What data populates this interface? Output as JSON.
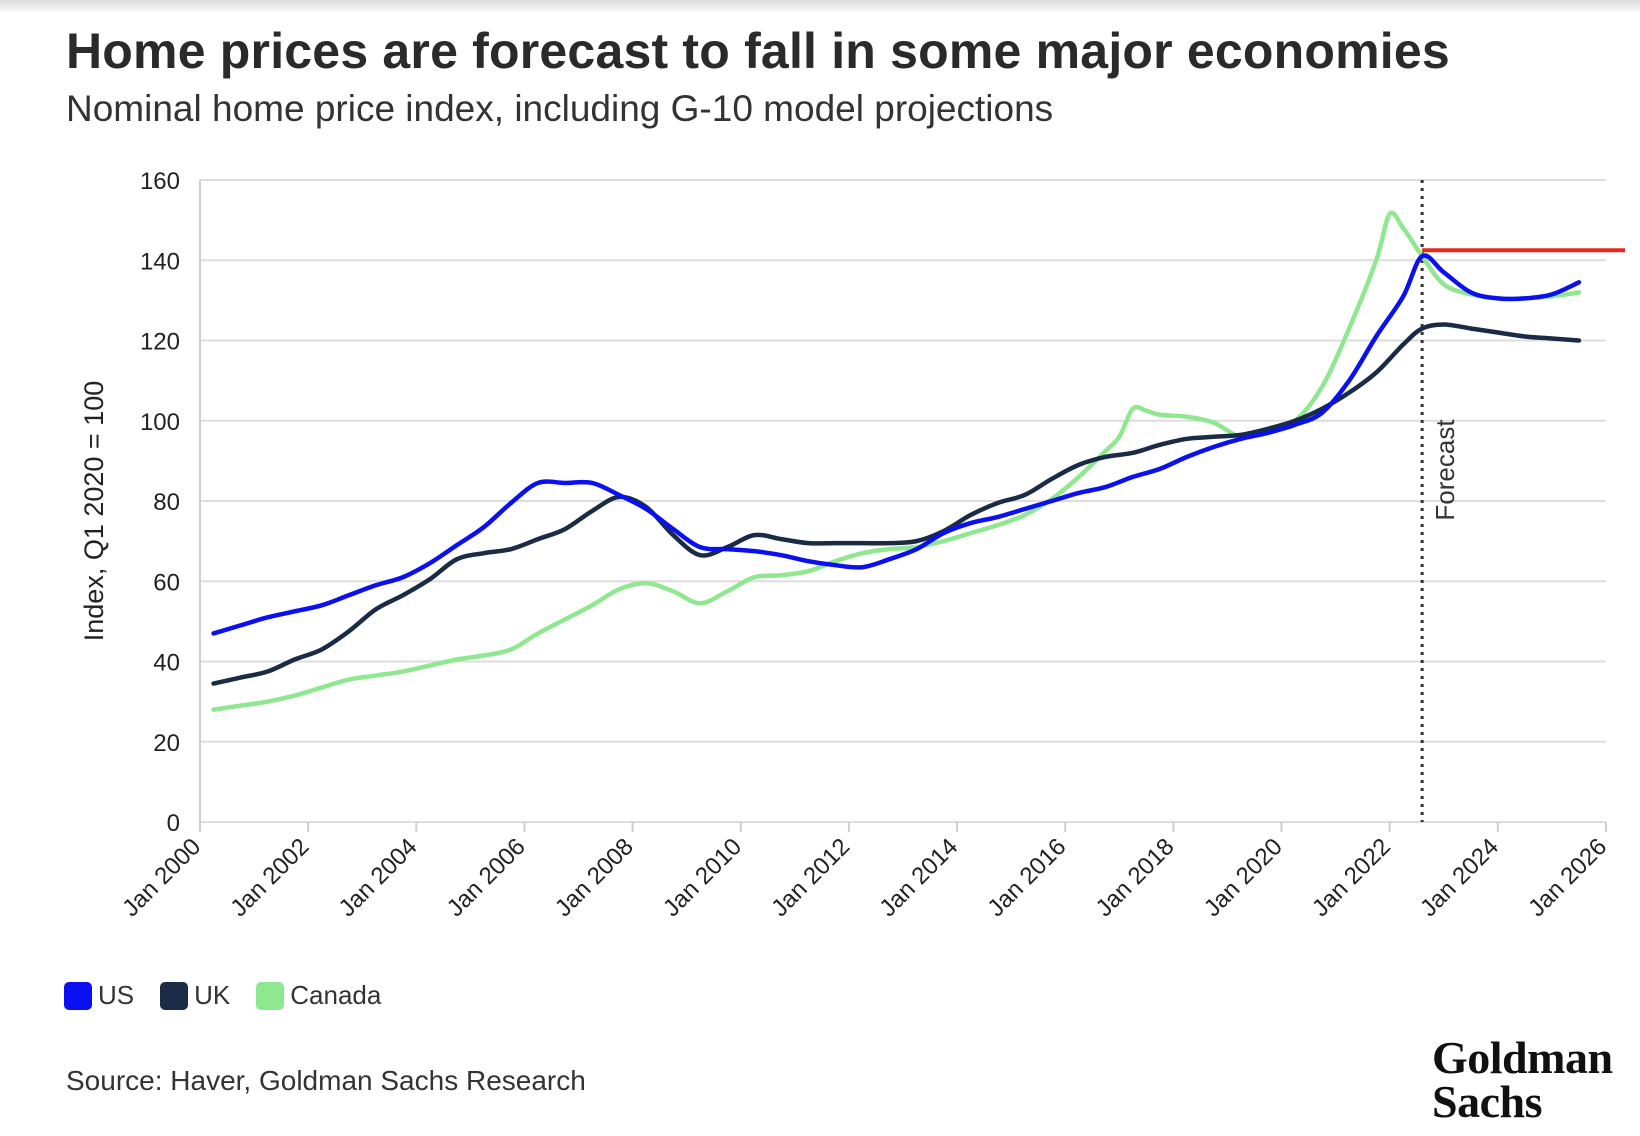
{
  "header": {
    "title": "Home prices are forecast to fall in some major economies",
    "subtitle": "Nominal home price index, including G-10 model projections"
  },
  "footer": {
    "source": "Source: Haver, Goldman Sachs Research",
    "logo_line1": "Goldman",
    "logo_line2": "Sachs"
  },
  "colors": {
    "US": "#0a10ef",
    "UK": "#1a2b45",
    "Canada": "#8fe88f",
    "reference": "#e8291c",
    "grid": "#dddddd"
  },
  "chart_data": {
    "type": "line",
    "title": "Home prices are forecast to fall in some major economies",
    "subtitle": "Nominal home price index, including G-10 model projections",
    "ylabel": "Index, Q1 2020 = 100",
    "xlabel": "",
    "ylim": [
      0,
      160
    ],
    "yticks": [
      0,
      20,
      40,
      60,
      80,
      100,
      120,
      140,
      160
    ],
    "xlim": [
      2000,
      2026
    ],
    "xticks": [
      {
        "value": 2000,
        "label": "Jan 2000"
      },
      {
        "value": 2002,
        "label": "Jan 2002"
      },
      {
        "value": 2004,
        "label": "Jan 2004"
      },
      {
        "value": 2006,
        "label": "Jan 2006"
      },
      {
        "value": 2008,
        "label": "Jan 2008"
      },
      {
        "value": 2010,
        "label": "Jan 2010"
      },
      {
        "value": 2012,
        "label": "Jan 2012"
      },
      {
        "value": 2014,
        "label": "Jan 2014"
      },
      {
        "value": 2016,
        "label": "Jan 2016"
      },
      {
        "value": 2018,
        "label": "Jan 2018"
      },
      {
        "value": 2020,
        "label": "Jan 2020"
      },
      {
        "value": 2022,
        "label": "Jan 2022"
      },
      {
        "value": 2024,
        "label": "Jan 2024"
      },
      {
        "value": 2026,
        "label": "Jan 2026"
      }
    ],
    "grid": true,
    "legend_position": "bottom-left",
    "forecast_line": {
      "x": 2022.6,
      "label": "Forecast"
    },
    "reference_line": {
      "y": 142.5,
      "x_start": 2022.6
    },
    "series": [
      {
        "name": "US",
        "x": [
          2000.25,
          2000.75,
          2001.25,
          2001.75,
          2002.25,
          2002.75,
          2003.25,
          2003.75,
          2004.25,
          2004.75,
          2005.25,
          2005.75,
          2006.25,
          2006.75,
          2007.25,
          2007.75,
          2008.25,
          2008.75,
          2009.25,
          2009.75,
          2010.25,
          2010.75,
          2011.25,
          2011.75,
          2012.25,
          2012.75,
          2013.25,
          2013.75,
          2014.25,
          2014.75,
          2015.25,
          2015.75,
          2016.25,
          2016.75,
          2017.25,
          2017.75,
          2018.25,
          2018.75,
          2019.25,
          2019.75,
          2020.25,
          2020.75,
          2021.25,
          2021.75,
          2022.25,
          2022.6,
          2023.0,
          2023.5,
          2024.0,
          2024.5,
          2025.0,
          2025.5
        ],
        "values": [
          47,
          49,
          51,
          52.5,
          54,
          56.5,
          59,
          61,
          64.5,
          69,
          73.5,
          79.5,
          84.5,
          84.5,
          84.5,
          81.5,
          78,
          73,
          68.5,
          68,
          67.5,
          66.5,
          65,
          64,
          63.5,
          65.5,
          68,
          72,
          74.5,
          76,
          78,
          80,
          82,
          83.5,
          86,
          88,
          91,
          93.5,
          95.5,
          97,
          99,
          102,
          110,
          121,
          131,
          141,
          137,
          132,
          130.5,
          130.5,
          131.5,
          134.5
        ]
      },
      {
        "name": "UK",
        "x": [
          2000.25,
          2000.75,
          2001.25,
          2001.75,
          2002.25,
          2002.75,
          2003.25,
          2003.75,
          2004.25,
          2004.75,
          2005.25,
          2005.75,
          2006.25,
          2006.75,
          2007.25,
          2007.75,
          2008.25,
          2008.75,
          2009.25,
          2009.75,
          2010.25,
          2010.75,
          2011.25,
          2011.75,
          2012.25,
          2012.75,
          2013.25,
          2013.75,
          2014.25,
          2014.75,
          2015.25,
          2015.75,
          2016.25,
          2016.75,
          2017.25,
          2017.75,
          2018.25,
          2018.75,
          2019.25,
          2019.75,
          2020.25,
          2020.75,
          2021.25,
          2021.75,
          2022.25,
          2022.6,
          2023.0,
          2023.5,
          2024.0,
          2024.5,
          2025.0,
          2025.5
        ],
        "values": [
          34.5,
          36,
          37.5,
          40.5,
          43,
          47.5,
          53,
          56.5,
          60.5,
          65.5,
          67,
          68,
          70.5,
          73,
          77.5,
          81,
          78.5,
          71.5,
          66.5,
          68.5,
          71.5,
          70.5,
          69.5,
          69.5,
          69.5,
          69.5,
          70,
          72.5,
          76.5,
          79.5,
          81.5,
          85.5,
          89,
          91,
          92,
          94,
          95.5,
          96,
          96.5,
          98,
          100,
          103,
          107,
          112,
          119,
          123,
          124,
          123,
          122,
          121,
          120.5,
          120
        ]
      },
      {
        "name": "Canada",
        "x": [
          2000.25,
          2000.75,
          2001.25,
          2001.75,
          2002.25,
          2002.75,
          2003.25,
          2003.75,
          2004.25,
          2004.75,
          2005.25,
          2005.75,
          2006.25,
          2006.75,
          2007.25,
          2007.75,
          2008.25,
          2008.75,
          2009.25,
          2009.75,
          2010.25,
          2010.75,
          2011.25,
          2011.75,
          2012.25,
          2012.75,
          2013.25,
          2013.75,
          2014.25,
          2014.75,
          2015.25,
          2015.75,
          2016.25,
          2016.75,
          2017.0,
          2017.25,
          2017.5,
          2017.75,
          2018.25,
          2018.75,
          2019.25,
          2019.75,
          2020.25,
          2020.75,
          2021.25,
          2021.75,
          2022.0,
          2022.25,
          2022.6,
          2023.0,
          2023.5,
          2024.0,
          2024.5,
          2025.0,
          2025.5
        ],
        "values": [
          28,
          29,
          30,
          31.5,
          33.5,
          35.5,
          36.5,
          37.5,
          39,
          40.5,
          41.5,
          43,
          47,
          50.5,
          54,
          58,
          59.5,
          57.5,
          54.5,
          57.5,
          61,
          61.5,
          62.5,
          65,
          67,
          68,
          68.5,
          70,
          72,
          74,
          76.5,
          80.5,
          86,
          92.5,
          96,
          103,
          102.5,
          101.5,
          101,
          99.5,
          96,
          97.5,
          100,
          108.5,
          123,
          140,
          151.5,
          148,
          141,
          134,
          131.5,
          130.5,
          130.5,
          131,
          132
        ]
      }
    ]
  }
}
